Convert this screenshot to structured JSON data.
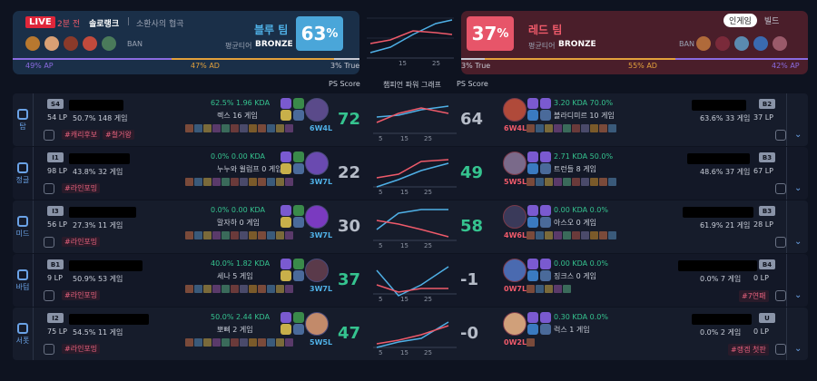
{
  "header": {
    "live": "LIVE",
    "time_ago": "2분 전",
    "queue": "솔로랭크",
    "separator": "|",
    "map": "소환사의 협곡",
    "blue_name": "블루 팀",
    "blue_avg_label": "평균티어",
    "blue_avg_tier": "BRONZE",
    "blue_pct": "63",
    "pct_sign": "%",
    "red_name": "레드 팀",
    "red_avg_label": "평균티어",
    "red_avg_tier": "BRONZE",
    "red_pct": "37",
    "ban": "BAN",
    "blue_ap": "49% AP",
    "blue_ad": "47% AD",
    "blue_true": "3% True",
    "red_true": "3% True",
    "red_ad": "55% AD",
    "red_ap": "42% AP",
    "tab_ingame": "인게임",
    "tab_build": "빌드",
    "ps_score_left": "PS Score",
    "graph_title": "챔피언 파워 그래프",
    "ps_score_right": "PS Score",
    "g_ticks": [
      "5",
      "15",
      "25"
    ]
  },
  "rows": [
    {
      "lane": "탑",
      "l_tier": "S4",
      "l_lp": "54 LP",
      "l_stats": "50.7%  148 게임",
      "l_kda": "62.5%  1.96 KDA",
      "l_champ": "렉스 16 게임",
      "l_rec": "6W4L",
      "l_tags": [
        "#캐리후보",
        "#철거왕"
      ],
      "ps_l": "72",
      "ps_r": "64",
      "r_kda": "3.20 KDA  70.0%",
      "r_champ": "블라디미르 10 게임",
      "r_rec": "6W4L",
      "r_tier": "B2",
      "r_stats": "63.6%  33 게임",
      "r_lp": "37 LP",
      "r_tag": ""
    },
    {
      "lane": "정글",
      "l_tier": "I1",
      "l_lp": "98 LP",
      "l_stats": "43.8%  32 게임",
      "l_kda": "0.0%  0.00 KDA",
      "l_champ": "누누와 윌럼프 0 게임",
      "l_rec": "3W7L",
      "l_tags": [
        "#라인포밍"
      ],
      "ps_l": "22",
      "ps_r": "49",
      "r_kda": "2.71 KDA  50.0%",
      "r_champ": "트런들 8 게임",
      "r_rec": "5W5L",
      "r_tier": "B3",
      "r_stats": "48.6%  37 게임",
      "r_lp": "67 LP",
      "r_tag": ""
    },
    {
      "lane": "미드",
      "l_tier": "I3",
      "l_lp": "56 LP",
      "l_stats": "27.3%  11 게임",
      "l_kda": "0.0%  0.00 KDA",
      "l_champ": "말자하 0 게임",
      "l_rec": "3W7L",
      "l_tags": [
        "#라인포밍"
      ],
      "ps_l": "30",
      "ps_r": "58",
      "r_kda": "0.00 KDA  0.0%",
      "r_champ": "아스오 0 게임",
      "r_rec": "4W6L",
      "r_tier": "B3",
      "r_stats": "61.9%  21 게임",
      "r_lp": "28 LP",
      "r_tag": ""
    },
    {
      "lane": "바텀",
      "l_tier": "B1",
      "l_lp": "9 LP",
      "l_stats": "50.9%  53 게임",
      "l_kda": "40.0%  1.82 KDA",
      "l_champ": "세나 5 게임",
      "l_rec": "3W7L",
      "l_tags": [
        "#라인포밍"
      ],
      "ps_l": "37",
      "ps_r": "-1",
      "r_kda": "0.00 KDA  0.0%",
      "r_champ": "징크스 0 게임",
      "r_rec": "0W7L",
      "r_tier": "B4",
      "r_stats": "0.0%  7 게임",
      "r_lp": "0 LP",
      "r_tag": "#7연패"
    },
    {
      "lane": "서폿",
      "l_tier": "I2",
      "l_lp": "75 LP",
      "l_stats": "54.5%  11 게임",
      "l_kda": "50.0%  2.44 KDA",
      "l_champ": "뽀삐 2 게임",
      "l_rec": "5W5L",
      "l_tags": [
        "#라인포밍"
      ],
      "ps_l": "47",
      "ps_r": "-0",
      "r_kda": "0.30 KDA  0.0%",
      "r_champ": "럭스 1 게임",
      "r_rec": "0W2L",
      "r_tier": "U",
      "r_stats": "0.0%  2 게임",
      "r_lp": "0 LP",
      "r_tag": "#랭겜 첫판"
    }
  ],
  "colors": {
    "blue": "#4fb0e6",
    "red": "#ef5a6a",
    "green": "#35c38f"
  }
}
